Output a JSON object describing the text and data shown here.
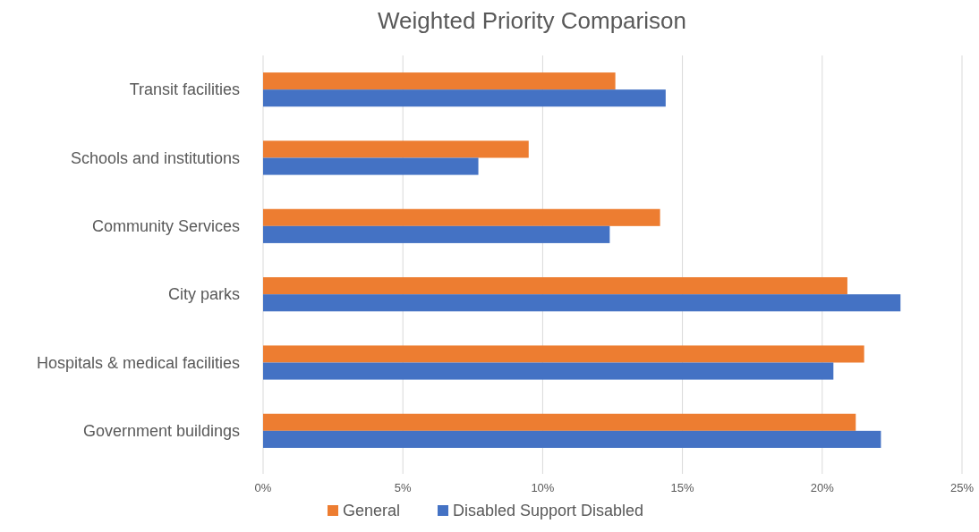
{
  "chart_data": {
    "type": "bar",
    "orientation": "horizontal",
    "title": "Weighted Priority Comparison",
    "categories": [
      "Transit facilities",
      "Schools and institutions",
      "Community Services",
      "City parks",
      "Hospitals & medical facilities",
      "Government buildings"
    ],
    "series": [
      {
        "name": "General",
        "color": "#ed7d31",
        "values": [
          12.6,
          9.5,
          14.2,
          20.9,
          21.5,
          21.2
        ]
      },
      {
        "name": "Disabled Support Disabled",
        "color": "#4472c4",
        "values": [
          14.4,
          7.7,
          12.4,
          22.8,
          20.4,
          22.1
        ]
      }
    ],
    "xlim": [
      0,
      25
    ],
    "xticks": [
      {
        "value": 0,
        "label": "0%"
      },
      {
        "value": 5,
        "label": "5%"
      },
      {
        "value": 10,
        "label": "10%"
      },
      {
        "value": 15,
        "label": "15%"
      },
      {
        "value": 20,
        "label": "20%"
      },
      {
        "value": 25,
        "label": "25%"
      }
    ],
    "grid": "x",
    "legend": "bottom"
  }
}
